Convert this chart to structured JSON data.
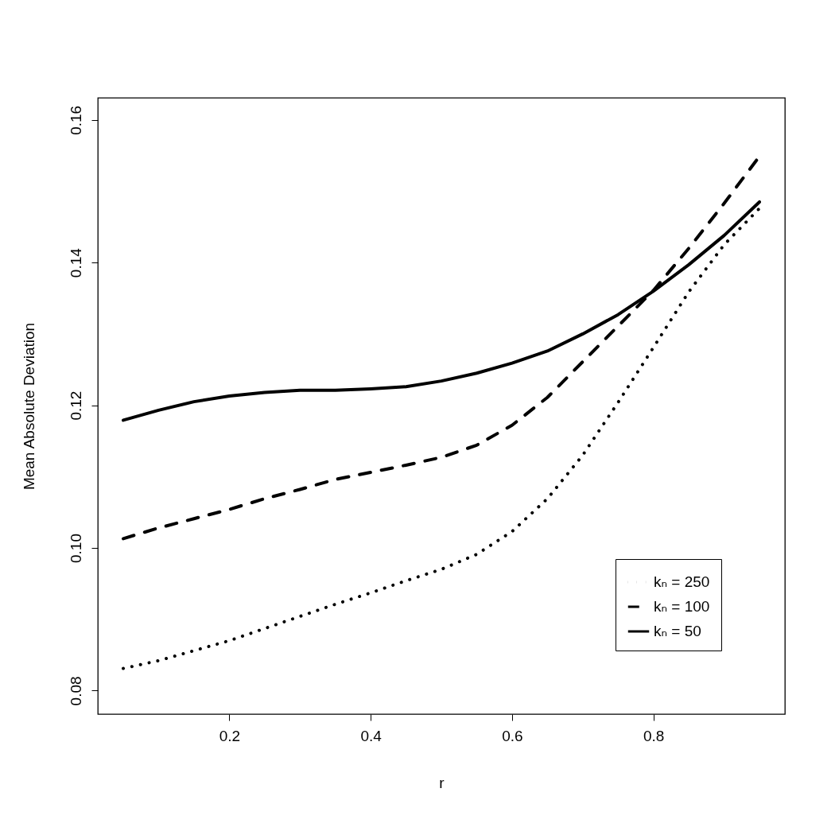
{
  "chart_data": {
    "type": "line",
    "xlabel": "r",
    "ylabel": "Mean Absolute Deviation",
    "x": [
      0.05,
      0.1,
      0.15,
      0.2,
      0.25,
      0.3,
      0.35,
      0.4,
      0.45,
      0.5,
      0.55,
      0.6,
      0.65,
      0.7,
      0.75,
      0.8,
      0.85,
      0.9,
      0.95
    ],
    "xlim": [
      0.014,
      0.986
    ],
    "xticks": [
      0.2,
      0.4,
      0.6,
      0.8
    ],
    "ylim": [
      0.0767,
      0.1631
    ],
    "yticks": [
      0.08,
      {
        "value": 0.1,
        "label": "0.10"
      },
      0.12,
      0.14,
      0.16
    ],
    "legend": "bottom right",
    "series": [
      {
        "name": "kₙ = 250",
        "color": "#000000",
        "line_style": "dotted",
        "values": [
          0.0831,
          0.0842,
          0.0856,
          0.087,
          0.0887,
          0.0904,
          0.0921,
          0.0937,
          0.0954,
          0.097,
          0.0991,
          0.1023,
          0.1069,
          0.113,
          0.1204,
          0.1281,
          0.1359,
          0.1425,
          0.1476
        ]
      },
      {
        "name": "kₙ = 100",
        "color": "#000000",
        "line_style": "dashed",
        "values": [
          0.1013,
          0.1028,
          0.1041,
          0.1054,
          0.1069,
          0.1082,
          0.1096,
          0.1106,
          0.1116,
          0.1127,
          0.1144,
          0.1172,
          0.1211,
          0.1261,
          0.1311,
          0.1361,
          0.142,
          0.1483,
          0.1549
        ]
      },
      {
        "name": "kₙ = 50",
        "color": "#000000",
        "line_style": "solid",
        "values": [
          0.1179,
          0.1193,
          0.1205,
          0.1213,
          0.1218,
          0.1221,
          0.1221,
          0.1223,
          0.1226,
          0.1234,
          0.1245,
          0.1259,
          0.1276,
          0.13,
          0.1327,
          0.136,
          0.1397,
          0.1438,
          0.1485
        ]
      }
    ]
  }
}
